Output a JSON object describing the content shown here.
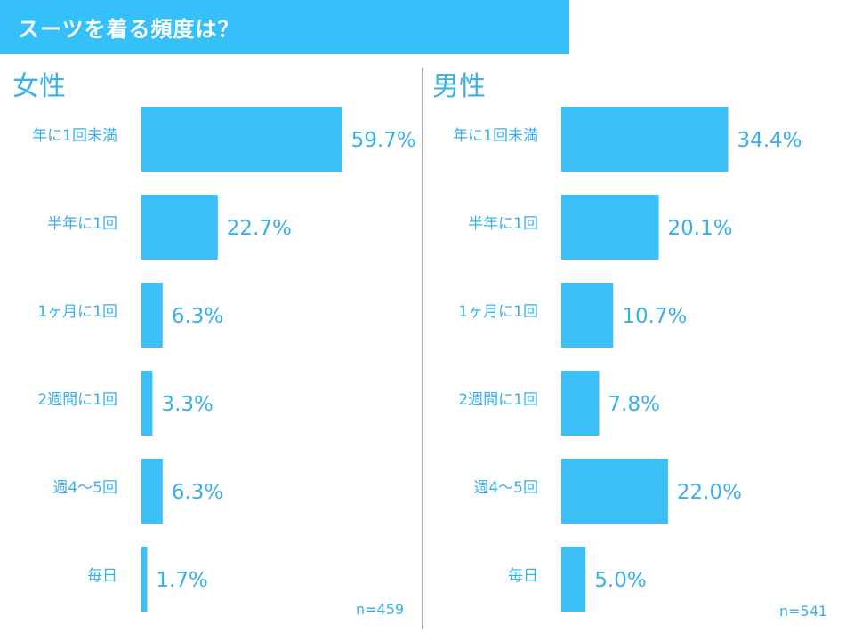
{
  "title": "スーツを着る頻度は？",
  "colors": {
    "bar": "#3cbef6",
    "text": "#3ab0e6",
    "banner": "#36c0fa"
  },
  "chart_data": [
    {
      "type": "bar",
      "orientation": "horizontal",
      "panel_title": "女性",
      "categories": [
        "年に1回未満",
        "半年に1回",
        "1ヶ月に1回",
        "2週間に1回",
        "週4〜5回",
        "毎日"
      ],
      "values": [
        59.7,
        22.7,
        6.3,
        3.3,
        6.3,
        1.7
      ],
      "value_labels": [
        "59.7%",
        "22.7%",
        "6.3%",
        "3.3%",
        "6.3%",
        "1.7%"
      ],
      "unit": "%",
      "sample_size": "n=459",
      "xlim": [
        0,
        100
      ]
    },
    {
      "type": "bar",
      "orientation": "horizontal",
      "panel_title": "男性",
      "categories": [
        "年に1回未満",
        "半年に1回",
        "1ヶ月に1回",
        "2週間に1回",
        "週4〜5回",
        "毎日"
      ],
      "values": [
        34.4,
        20.1,
        10.7,
        7.8,
        22.0,
        5.0
      ],
      "value_labels": [
        "34.4%",
        "20.1%",
        "10.7%",
        "7.8%",
        "22.0%",
        "5.0%"
      ],
      "unit": "%",
      "sample_size": "n=541",
      "xlim": [
        0,
        100
      ]
    }
  ]
}
